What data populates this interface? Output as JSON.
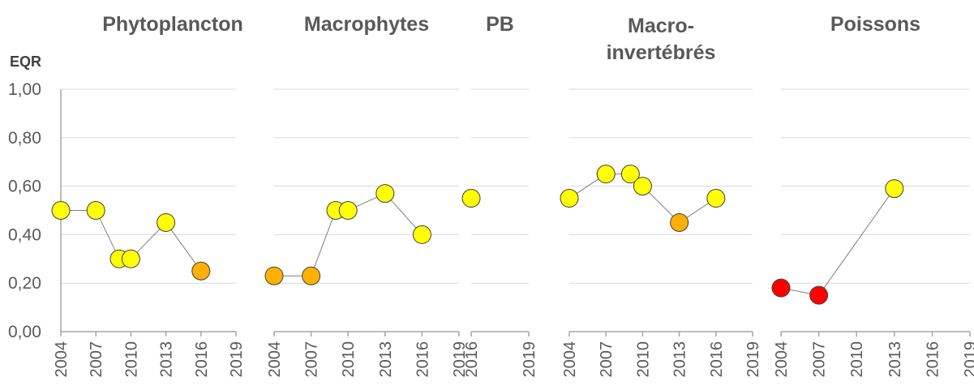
{
  "chart_data": {
    "type": "line",
    "ylabel": "EQR",
    "ylim": [
      0,
      1
    ],
    "yticks": [
      "0,00",
      "0,20",
      "0,40",
      "0,60",
      "0,80",
      "1,00"
    ],
    "grid": true,
    "colors": {
      "yellow": "#FFFF00",
      "orange": "#FFB000",
      "red": "#FF0000",
      "gridline": "#D9D9D9",
      "connector": "#7F7F7F",
      "text": "#595959"
    },
    "panels": [
      {
        "title": "Phytoplancton",
        "xticks": [
          "2004",
          "2007",
          "2010",
          "2013",
          "2016",
          "2019"
        ],
        "xrange": [
          2004,
          2019
        ],
        "points": [
          {
            "x": 2004,
            "y": 0.5,
            "class": "yellow"
          },
          {
            "x": 2007,
            "y": 0.5,
            "class": "yellow"
          },
          {
            "x": 2009,
            "y": 0.3,
            "class": "yellow"
          },
          {
            "x": 2010,
            "y": 0.3,
            "class": "yellow"
          },
          {
            "x": 2013,
            "y": 0.45,
            "class": "yellow"
          },
          {
            "x": 2016,
            "y": 0.25,
            "class": "orange"
          }
        ]
      },
      {
        "title": "Macrophytes",
        "xticks": [
          "2004",
          "2007",
          "2010",
          "2013",
          "2016",
          "2019"
        ],
        "xrange": [
          2004,
          2019
        ],
        "points": [
          {
            "x": 2004,
            "y": 0.23,
            "class": "orange"
          },
          {
            "x": 2007,
            "y": 0.23,
            "class": "orange"
          },
          {
            "x": 2009,
            "y": 0.5,
            "class": "yellow"
          },
          {
            "x": 2010,
            "y": 0.5,
            "class": "yellow"
          },
          {
            "x": 2013,
            "y": 0.57,
            "class": "yellow"
          },
          {
            "x": 2016,
            "y": 0.4,
            "class": "yellow"
          }
        ]
      },
      {
        "title": "PB",
        "xticks": [
          "2016",
          "2019"
        ],
        "xrange": [
          2016,
          2019
        ],
        "points": [
          {
            "x": 2016,
            "y": 0.55,
            "class": "yellow"
          }
        ]
      },
      {
        "title": "Macro-invertébrés",
        "title_lines": [
          "Macro-",
          "invertébrés"
        ],
        "xticks": [
          "2004",
          "2007",
          "2010",
          "2013",
          "2016",
          "2019"
        ],
        "xrange": [
          2004,
          2019
        ],
        "points": [
          {
            "x": 2004,
            "y": 0.55,
            "class": "yellow"
          },
          {
            "x": 2007,
            "y": 0.65,
            "class": "yellow"
          },
          {
            "x": 2009,
            "y": 0.65,
            "class": "yellow"
          },
          {
            "x": 2010,
            "y": 0.6,
            "class": "yellow"
          },
          {
            "x": 2013,
            "y": 0.45,
            "class": "orange"
          },
          {
            "x": 2016,
            "y": 0.55,
            "class": "yellow"
          }
        ]
      },
      {
        "title": "Poissons",
        "xticks": [
          "2004",
          "2007",
          "2010",
          "2013",
          "2016",
          "2019"
        ],
        "xrange": [
          2004,
          2019
        ],
        "points": [
          {
            "x": 2004,
            "y": 0.18,
            "class": "red"
          },
          {
            "x": 2007,
            "y": 0.15,
            "class": "red"
          },
          {
            "x": 2013,
            "y": 0.59,
            "class": "yellow"
          }
        ]
      }
    ]
  }
}
